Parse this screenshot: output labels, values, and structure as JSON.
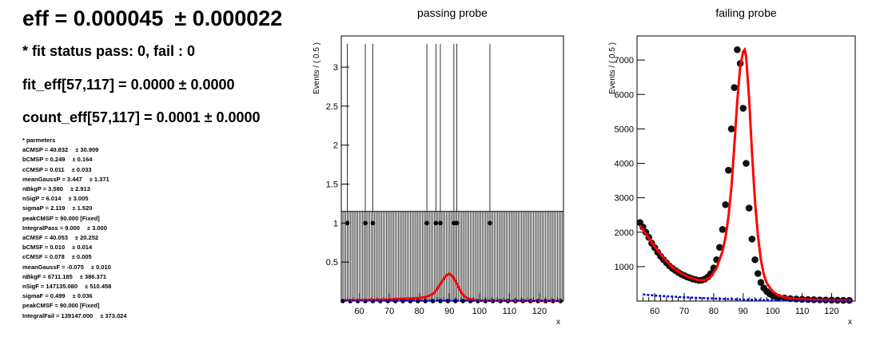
{
  "summary": {
    "eff_label": "eff = 0.000045",
    "eff_err": "± 0.000022",
    "fit_status": "* fit status pass: 0, fail : 0",
    "fit_eff": "fit_eff[57,117] = 0.0000 ± 0.0000",
    "count_eff": "count_eff[57,117] = 0.0001 ± 0.0000"
  },
  "params": {
    "header": "* parmeters",
    "rows": [
      {
        "name": "aCMSP = 40.832",
        "err": "± 30.909"
      },
      {
        "name": "bCMSP = 0.249",
        "err": "± 0.164"
      },
      {
        "name": "cCMSP = 0.011",
        "err": "± 0.033"
      },
      {
        "name": "meanGaussP = 3.447",
        "err": "± 1.371"
      },
      {
        "name": "nBkgP = 3.580",
        "err": "± 2.913"
      },
      {
        "name": "nSigP = 6.014",
        "err": "± 3.005"
      },
      {
        "name": "sigmaP = 2.119",
        "err": "± 1.520"
      },
      {
        "name": "peakCMSP = 90.000 [Fixed]",
        "err": ""
      },
      {
        "name": "IntegralPass = 9.000",
        "err": "± 3.000"
      },
      {
        "name": "aCMSF = 40.053",
        "err": "± 20.252"
      },
      {
        "name": "bCMSF = 0.010",
        "err": "± 0.014"
      },
      {
        "name": "cCMSF = 0.078",
        "err": "± 0.005"
      },
      {
        "name": "meanGaussF = -0.075",
        "err": "± 0.010"
      },
      {
        "name": "nBkgF = 6711.185",
        "err": "± 386.371"
      },
      {
        "name": "nSigF = 147135.080",
        "err": "± 510.458"
      },
      {
        "name": "sigmaF = 0.499",
        "err": "± 0.036"
      },
      {
        "name": "peakCMSF = 90.000 [Fixed]",
        "err": ""
      },
      {
        "name": "IntegralFail = 139147.000",
        "err": "± 373.024"
      }
    ]
  },
  "colors": {
    "data": "#000000",
    "fit": "#ff0000",
    "background": "#0000cc"
  },
  "chart_data": [
    {
      "type": "scatter",
      "title": "passing probe",
      "xlabel": "x",
      "ylabel": "Events / ( 0.5 )",
      "xlim": [
        54,
        128
      ],
      "ylim": [
        0,
        3.4
      ],
      "x_ticks": [
        60,
        70,
        80,
        90,
        100,
        110,
        120
      ],
      "y_ticks": [
        0.5,
        1,
        1.5,
        2,
        2.5,
        3
      ],
      "y_tick_labels": [
        "0.5",
        "1",
        "1.5",
        "2",
        "2.5",
        "3"
      ],
      "series": [
        {
          "role": "data",
          "bin_width": 0.5,
          "x": [
            56,
            62,
            64.5,
            82.5,
            85.5,
            87,
            91.5,
            92.5,
            103.5
          ],
          "y": [
            1,
            1,
            1,
            1,
            1,
            1,
            1,
            1,
            1
          ],
          "err_up": [
            2.3,
            2.3,
            2.3,
            2.3,
            2.3,
            2.3,
            2.3,
            2.3,
            2.3
          ],
          "zero_bin_err_up": 1.15
        },
        {
          "role": "fit",
          "x": [
            55,
            60,
            65,
            70,
            75,
            78,
            80,
            82,
            84,
            85,
            86,
            87,
            88,
            89,
            90,
            91,
            92,
            93,
            94,
            95,
            96,
            98,
            100,
            110,
            127
          ],
          "y": [
            0.008,
            0.01,
            0.015,
            0.02,
            0.03,
            0.035,
            0.04,
            0.05,
            0.08,
            0.11,
            0.16,
            0.22,
            0.28,
            0.33,
            0.35,
            0.32,
            0.26,
            0.18,
            0.11,
            0.06,
            0.035,
            0.015,
            0.008,
            0.004,
            0.002
          ]
        },
        {
          "role": "background",
          "x": [
            55,
            80,
            100,
            127
          ],
          "y": [
            0.008,
            0.006,
            0.004,
            0.002
          ]
        }
      ]
    },
    {
      "type": "scatter",
      "title": "failing probe",
      "xlabel": "x",
      "ylabel": "Events / ( 0.5 )",
      "xlim": [
        54,
        128
      ],
      "ylim": [
        0,
        7700
      ],
      "x_ticks": [
        60,
        70,
        80,
        90,
        100,
        110,
        120
      ],
      "y_ticks": [
        1000,
        2000,
        3000,
        4000,
        5000,
        6000,
        7000
      ],
      "y_tick_labels": [
        "1000",
        "2000",
        "3000",
        "4000",
        "5000",
        "6000",
        "7000"
      ],
      "series": [
        {
          "role": "data",
          "bin_width": 0.5,
          "x": [
            55,
            56,
            57,
            58,
            59,
            60,
            61,
            62,
            63,
            64,
            65,
            66,
            67,
            68,
            69,
            70,
            71,
            72,
            73,
            74,
            75,
            76,
            77,
            78,
            79,
            80,
            81,
            82,
            83,
            84,
            85,
            86,
            87,
            88,
            89,
            90,
            91,
            92,
            93,
            94,
            95,
            96,
            97,
            98,
            99,
            100,
            101,
            102,
            104,
            106,
            108,
            110,
            112,
            114,
            116,
            118,
            120,
            122,
            124,
            126
          ],
          "y": [
            2280,
            2150,
            2000,
            1850,
            1680,
            1550,
            1420,
            1300,
            1200,
            1110,
            1020,
            950,
            890,
            830,
            780,
            740,
            700,
            670,
            640,
            620,
            600,
            610,
            640,
            700,
            800,
            960,
            1200,
            1560,
            2080,
            2800,
            3800,
            5000,
            6200,
            7300,
            6900,
            5600,
            4000,
            2700,
            1800,
            1200,
            800,
            540,
            380,
            280,
            210,
            160,
            130,
            110,
            90,
            70,
            60,
            50,
            45,
            40,
            35,
            30,
            28,
            25,
            22,
            20
          ]
        },
        {
          "role": "fit",
          "x": [
            55,
            57,
            60,
            63,
            66,
            69,
            72,
            75,
            77,
            79,
            81,
            83,
            84,
            85,
            86,
            87,
            88,
            89,
            90,
            90.5,
            91,
            92,
            93,
            94,
            95,
            96,
            97,
            98,
            100,
            102,
            105,
            110,
            115,
            120,
            127
          ],
          "y": [
            2200,
            1950,
            1580,
            1250,
            980,
            800,
            680,
            600,
            610,
            700,
            960,
            1450,
            1850,
            2450,
            3300,
            4500,
            5800,
            6800,
            7250,
            7300,
            7100,
            5900,
            4300,
            2900,
            1900,
            1200,
            780,
            520,
            280,
            160,
            90,
            50,
            35,
            25,
            15
          ]
        },
        {
          "role": "background",
          "x": [
            56,
            60,
            70,
            80,
            90,
            100,
            110,
            120,
            127
          ],
          "y": [
            190,
            160,
            110,
            75,
            45,
            25,
            12,
            6,
            3
          ]
        }
      ]
    }
  ]
}
